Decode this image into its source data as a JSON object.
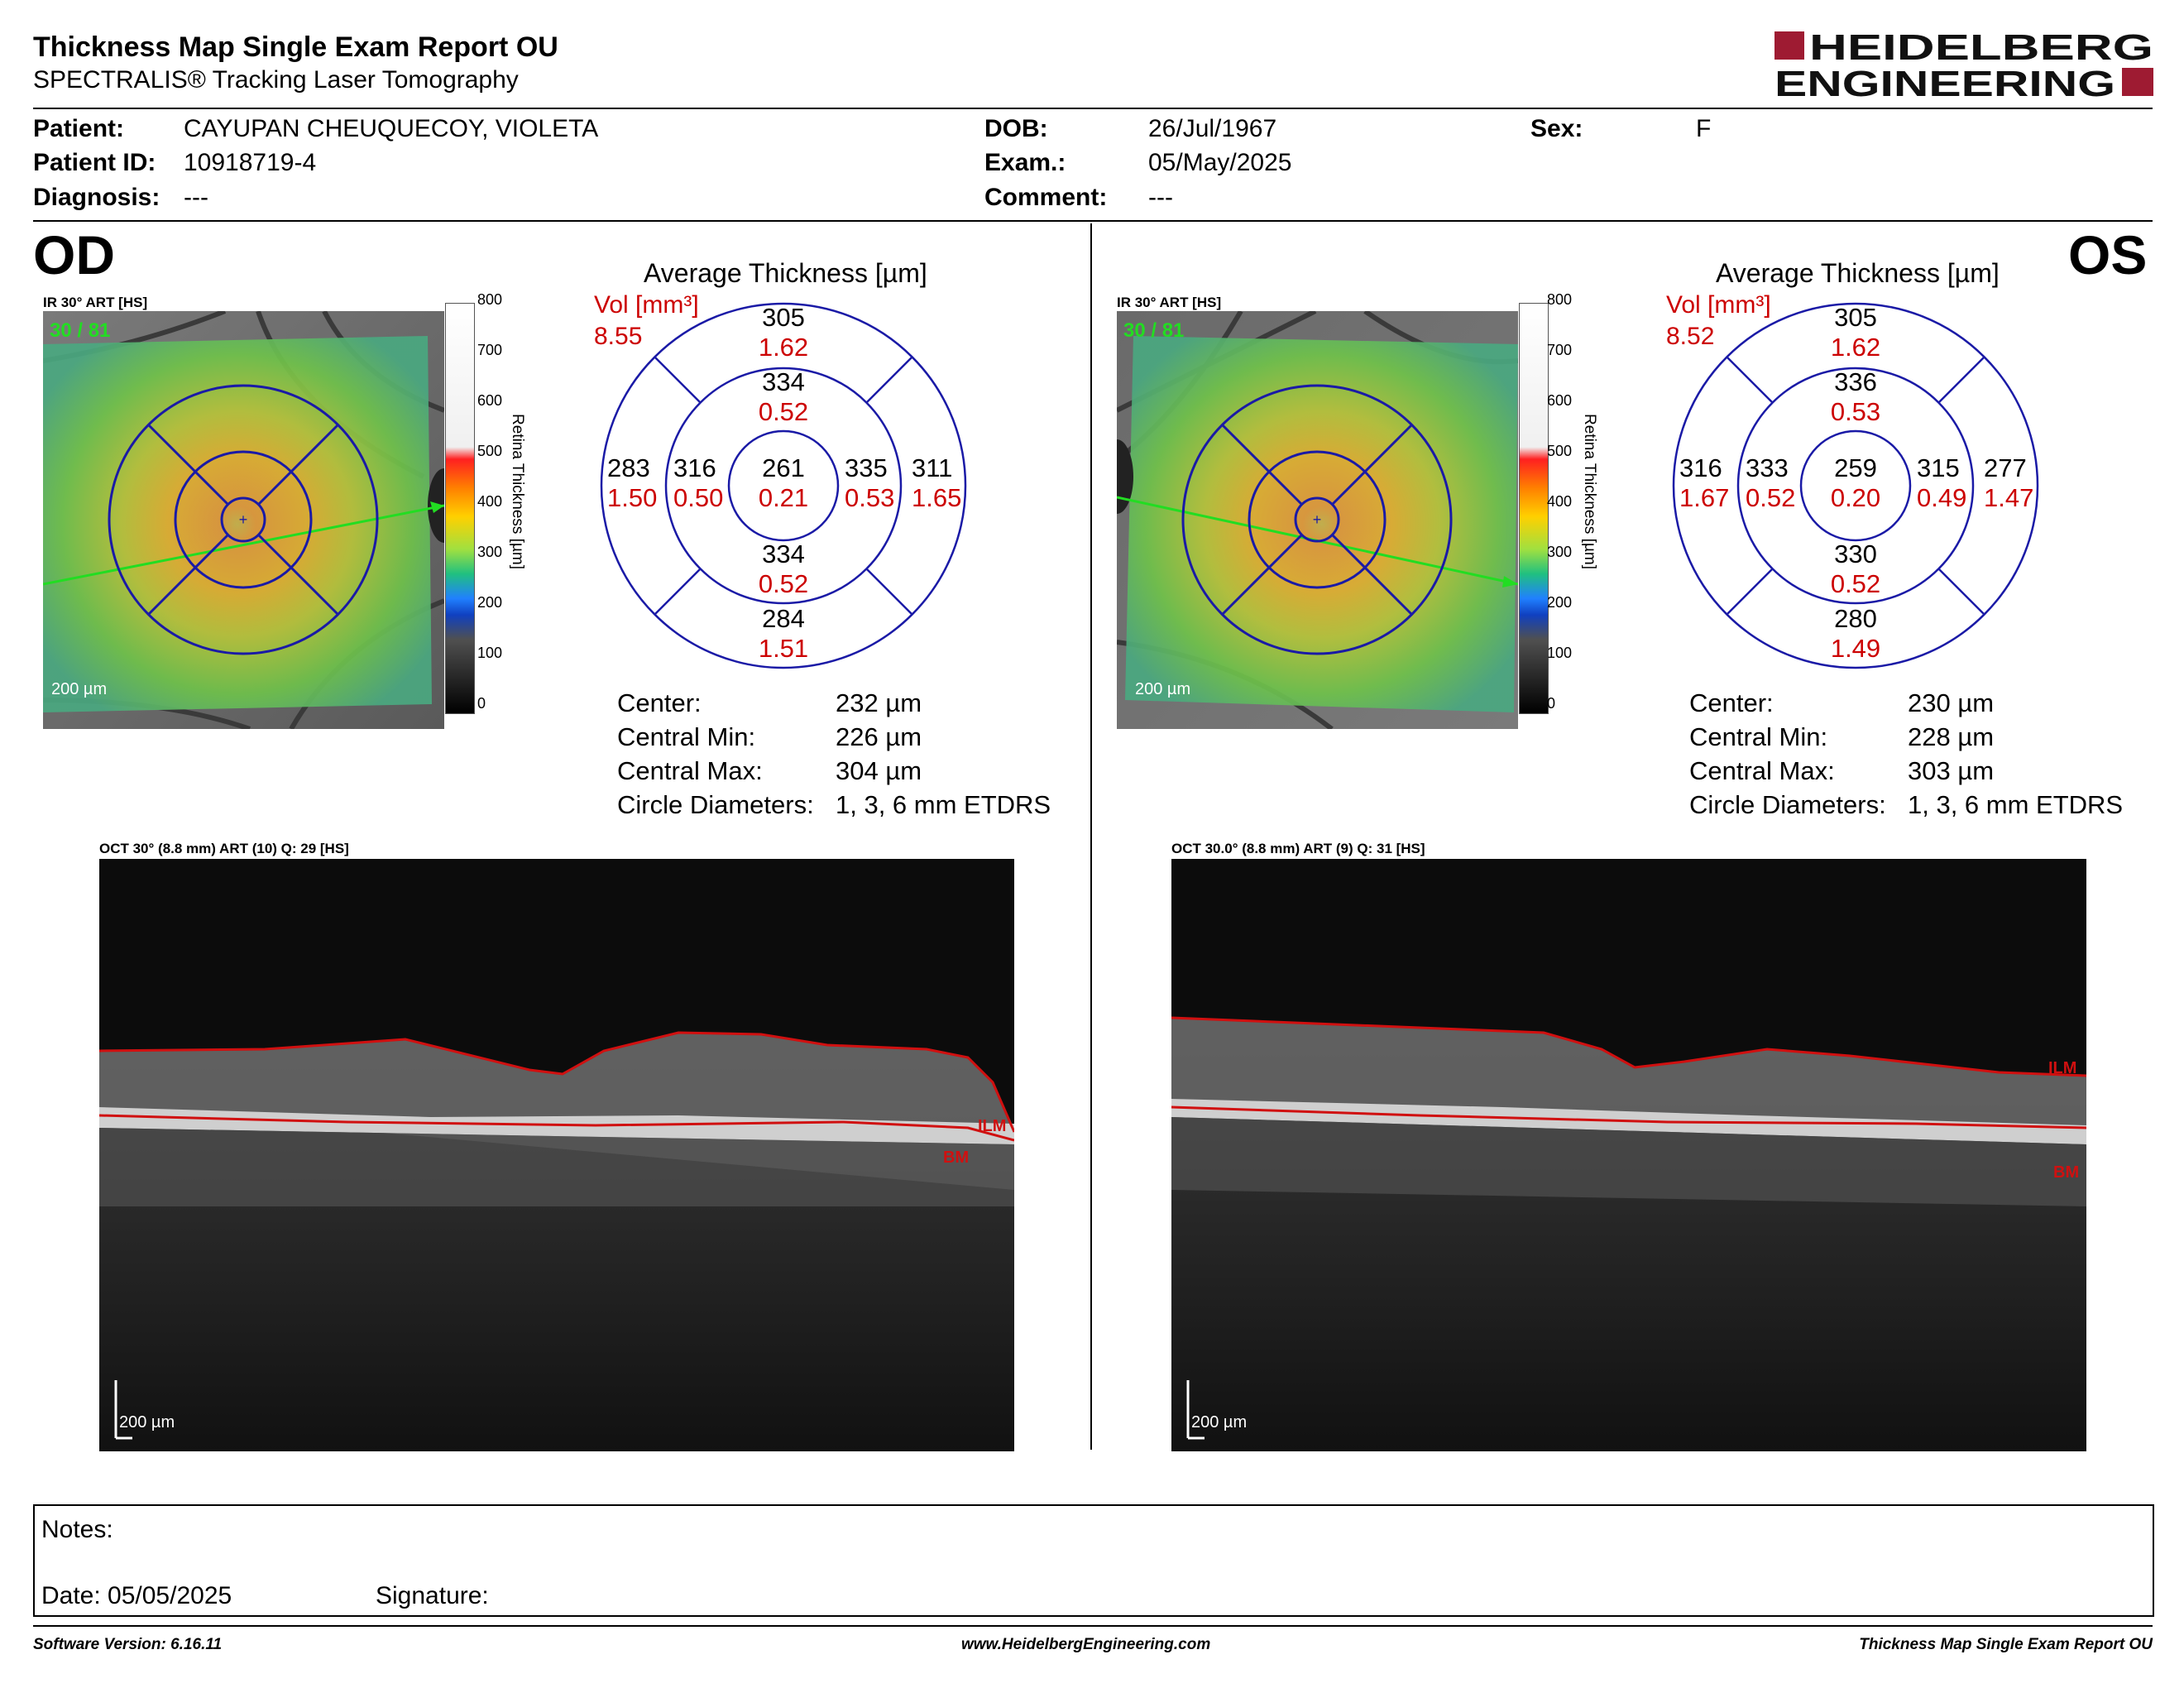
{
  "report": {
    "title": "Thickness Map Single Exam Report OU",
    "subtitle": "SPECTRALIS® Tracking Laser Tomography",
    "logo_line1": "HEIDELBERG",
    "logo_line2": "ENGINEERING"
  },
  "patient": {
    "patient_label": "Patient:",
    "patient_value": "CAYUPAN CHEUQUECOY, VIOLETA",
    "id_label": "Patient ID:",
    "id_value": "10918719-4",
    "diagnosis_label": "Diagnosis:",
    "diagnosis_value": "---",
    "dob_label": "DOB:",
    "dob_value": "26/Jul/1967",
    "exam_label": "Exam.:",
    "exam_value": "05/May/2025",
    "comment_label": "Comment:",
    "comment_value": "---",
    "sex_label": "Sex:",
    "sex_value": "F"
  },
  "colors": {
    "accent": "#9e1b32",
    "grid_blue": "#1a1aa6",
    "volume_red": "#cc0000",
    "segmentation_red": "#d01010",
    "arrow_green": "#22dd22"
  },
  "scale": {
    "ticks": [
      "800",
      "700",
      "600",
      "500",
      "400",
      "300",
      "200",
      "100",
      "0"
    ],
    "title": "Retina  Thickness [µm]"
  },
  "od": {
    "eye": "OD",
    "ir_caption": "IR 30° ART [HS]",
    "frame_count": "30 / 81",
    "fundus_scale": "200 µm",
    "avg_title": "Average Thickness [µm]",
    "vol_label": "Vol [mm³]",
    "vol_total": "8.55",
    "grid": {
      "center": {
        "t": "261",
        "v": "0.21"
      },
      "inner_sup": {
        "t": "334",
        "v": "0.52"
      },
      "inner_inf": {
        "t": "334",
        "v": "0.52"
      },
      "inner_left": {
        "t": "316",
        "v": "0.50"
      },
      "inner_right": {
        "t": "335",
        "v": "0.53"
      },
      "outer_sup": {
        "t": "305",
        "v": "1.62"
      },
      "outer_inf": {
        "t": "284",
        "v": "1.51"
      },
      "outer_left": {
        "t": "283",
        "v": "1.50"
      },
      "outer_right": {
        "t": "311",
        "v": "1.65"
      }
    },
    "stats": {
      "center_label": "Center:",
      "center_value": "232 µm",
      "min_label": "Central Min:",
      "min_value": "226 µm",
      "max_label": "Central Max:",
      "max_value": "304 µm",
      "diam_label": "Circle Diameters:",
      "diam_value": "1, 3, 6 mm ETDRS"
    },
    "oct_caption": "OCT 30° (8.8 mm) ART (10) Q: 29 [HS]",
    "oct_scale": "200 µm",
    "ilm_label": "ILM",
    "bm_label": "BM"
  },
  "os": {
    "eye": "OS",
    "ir_caption": "IR 30° ART [HS]",
    "frame_count": "30 / 81",
    "fundus_scale": "200 µm",
    "avg_title": "Average Thickness [µm]",
    "vol_label": "Vol [mm³]",
    "vol_total": "8.52",
    "grid": {
      "center": {
        "t": "259",
        "v": "0.20"
      },
      "inner_sup": {
        "t": "336",
        "v": "0.53"
      },
      "inner_inf": {
        "t": "330",
        "v": "0.52"
      },
      "inner_left": {
        "t": "333",
        "v": "0.52"
      },
      "inner_right": {
        "t": "315",
        "v": "0.49"
      },
      "outer_sup": {
        "t": "305",
        "v": "1.62"
      },
      "outer_inf": {
        "t": "280",
        "v": "1.49"
      },
      "outer_left": {
        "t": "316",
        "v": "1.67"
      },
      "outer_right": {
        "t": "277",
        "v": "1.47"
      }
    },
    "stats": {
      "center_label": "Center:",
      "center_value": "230 µm",
      "min_label": "Central Min:",
      "min_value": "228 µm",
      "max_label": "Central Max:",
      "max_value": "303 µm",
      "diam_label": "Circle Diameters:",
      "diam_value": "1, 3, 6 mm ETDRS"
    },
    "oct_caption": "OCT 30.0° (8.8 mm) ART (9) Q: 31 [HS]",
    "oct_scale": "200 µm",
    "ilm_label": "ILM",
    "bm_label": "BM"
  },
  "notes": {
    "notes_label": "Notes:",
    "date_label": "Date: 05/05/2025",
    "signature_label": "Signature:"
  },
  "footer": {
    "software": "Software Version: 6.16.11",
    "website": "www.HeidelbergEngineering.com",
    "report_name": "Thickness Map Single Exam Report OU"
  }
}
